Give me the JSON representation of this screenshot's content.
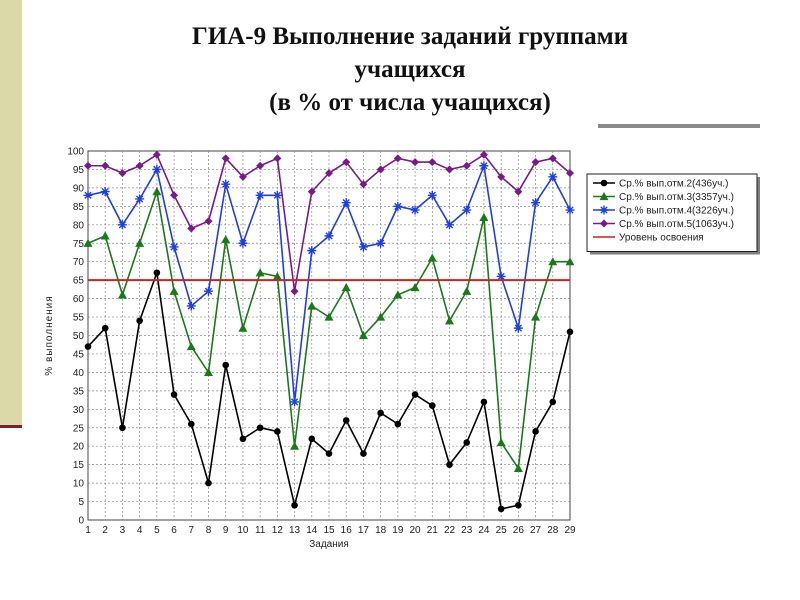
{
  "slide": {
    "title_line1": "ГИА-9 Выполнение заданий группами",
    "title_line2": "учащихся",
    "title_line3": "(в % от числа учащихся)"
  },
  "chart_data": {
    "type": "line",
    "title": "",
    "xlabel": "Задания",
    "ylabel": "% выполнения",
    "x": [
      1,
      2,
      3,
      4,
      5,
      6,
      7,
      8,
      9,
      10,
      11,
      12,
      13,
      14,
      15,
      16,
      17,
      18,
      19,
      20,
      21,
      22,
      23,
      24,
      25,
      26,
      27,
      28,
      29
    ],
    "ylim": [
      0,
      100
    ],
    "yticks": [
      0,
      5,
      10,
      15,
      20,
      25,
      30,
      35,
      40,
      45,
      50,
      55,
      60,
      65,
      70,
      75,
      80,
      85,
      90,
      95,
      100
    ],
    "grid": true,
    "legend_position": "top-right",
    "series": [
      {
        "name": "Ср.% вып.отм.2(436уч.)",
        "color": "#000000",
        "marker": "circle",
        "values": [
          47,
          52,
          25,
          54,
          67,
          34,
          26,
          10,
          42,
          22,
          25,
          24,
          4,
          22,
          18,
          27,
          18,
          29,
          26,
          34,
          31,
          15,
          21,
          32,
          3,
          4,
          24,
          32,
          51
        ]
      },
      {
        "name": "Ср.% вып.отм.3(3357уч.)",
        "color": "#1a7a1a",
        "marker": "triangle",
        "values": [
          75,
          77,
          61,
          75,
          89,
          62,
          47,
          40,
          76,
          52,
          67,
          66,
          20,
          58,
          55,
          63,
          50,
          55,
          61,
          63,
          71,
          54,
          62,
          82,
          21,
          14,
          55,
          70,
          70
        ]
      },
      {
        "name": "Ср.% вып.отм.4(3226уч.)",
        "color": "#1f3fe0",
        "marker": "star",
        "values": [
          88,
          89,
          80,
          87,
          95,
          74,
          58,
          62,
          91,
          75,
          88,
          88,
          32,
          73,
          77,
          86,
          74,
          75,
          85,
          84,
          88,
          80,
          84,
          96,
          66,
          52,
          86,
          93,
          84
        ]
      },
      {
        "name": "Ср.% вып.отм.5(1063уч.)",
        "color": "#7a1a8a",
        "marker": "diamond",
        "values": [
          96,
          96,
          94,
          96,
          99,
          88,
          79,
          81,
          98,
          93,
          96,
          98,
          62,
          89,
          94,
          97,
          91,
          95,
          98,
          97,
          97,
          95,
          96,
          99,
          93,
          89,
          97,
          98,
          94
        ]
      },
      {
        "name": "Уровень освоения",
        "color": "#cc2222",
        "marker": "none",
        "values": [
          65,
          65,
          65,
          65,
          65,
          65,
          65,
          65,
          65,
          65,
          65,
          65,
          65,
          65,
          65,
          65,
          65,
          65,
          65,
          65,
          65,
          65,
          65,
          65,
          65,
          65,
          65,
          65,
          65
        ]
      }
    ]
  }
}
